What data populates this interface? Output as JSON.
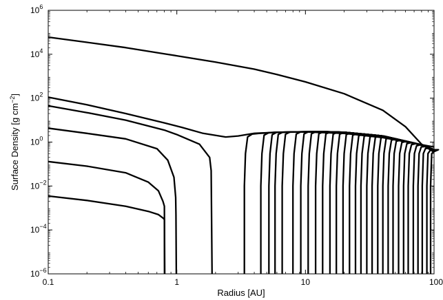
{
  "chart_data": {
    "type": "line",
    "title": "",
    "xlabel": "Radius [AU]",
    "ylabel_parts": {
      "main": "Surface Density [g cm",
      "exp": "−2",
      "close": "]"
    },
    "xscale": "log",
    "yscale": "log",
    "xlim": [
      0.1,
      100
    ],
    "ylim": [
      1e-06,
      1000000.0
    ],
    "grid": false,
    "legend": "none",
    "x_ticks": [
      {
        "value": 0.1,
        "label": "0.1"
      },
      {
        "value": 1,
        "label": "1"
      },
      {
        "value": 10,
        "label": "10"
      },
      {
        "value": 100,
        "label": "100"
      }
    ],
    "y_ticks": [
      {
        "value": 1e-06,
        "base": "10",
        "exp": "−6"
      },
      {
        "value": 0.0001,
        "base": "10",
        "exp": "−4"
      },
      {
        "value": 0.01,
        "base": "10",
        "exp": "−2"
      },
      {
        "value": 1,
        "base": "10",
        "exp": "0"
      },
      {
        "value": 100,
        "base": "10",
        "exp": "2"
      },
      {
        "value": 10000,
        "base": "10",
        "exp": "4"
      },
      {
        "value": 1000000,
        "base": "10",
        "exp": "6"
      }
    ],
    "series": [
      {
        "x": [
          0.1,
          0.2,
          0.4,
          0.8,
          1,
          2,
          4,
          6,
          10,
          20,
          40,
          60,
          80,
          100
        ],
        "y": [
          60000.0,
          35000.0,
          20000.0,
          10500.0,
          8500,
          4400,
          2100,
          1200,
          550,
          160,
          28,
          5,
          0.8,
          0.35
        ]
      },
      {
        "x": [
          0.1,
          0.2,
          0.4,
          0.8,
          1.1,
          1.6,
          2.4,
          3,
          4,
          6,
          10,
          20,
          40,
          100
        ],
        "y": [
          110,
          50,
          20,
          7.5,
          4.6,
          2.5,
          1.7,
          1.9,
          2.5,
          2.8,
          2.9,
          2.5,
          1.6,
          0.6
        ]
      },
      {
        "x": [
          0.1,
          0.2,
          0.4,
          0.8,
          1,
          1.5,
          1.8,
          1.85,
          1.88
        ],
        "y": [
          45,
          22,
          10,
          3.5,
          2.2,
          0.8,
          0.2,
          0.05,
          1e-06
        ]
      },
      {
        "x": [
          0.1,
          0.2,
          0.4,
          0.7,
          0.85,
          0.95,
          0.98,
          0.985,
          0.99
        ],
        "y": [
          4.3,
          2.5,
          1.4,
          0.5,
          0.15,
          0.025,
          0.003,
          0.0005,
          1e-06
        ]
      },
      {
        "x": [
          0.1,
          0.2,
          0.4,
          0.6,
          0.72,
          0.78,
          0.8,
          0.805
        ],
        "y": [
          0.13,
          0.08,
          0.04,
          0.015,
          0.006,
          0.002,
          0.0012,
          1e-06
        ]
      },
      {
        "x": [
          0.1,
          0.2,
          0.4,
          0.6,
          0.72,
          0.78,
          0.8,
          0.802
        ],
        "y": [
          0.0035,
          0.0022,
          0.0012,
          0.0007,
          0.0005,
          0.00035,
          0.0003,
          1e-06
        ]
      }
    ],
    "truncated_profiles": {
      "envelope_x": [
        3.3,
        4,
        6,
        10,
        13,
        20,
        40,
        80,
        100
      ],
      "envelope_y": [
        2.0,
        2.4,
        2.8,
        2.95,
        3.0,
        2.8,
        1.9,
        0.75,
        0.45
      ],
      "edge_radii": [
        3.35,
        4.5,
        5.2,
        5.8,
        6.6,
        8,
        9.2,
        10.5,
        12,
        13.6,
        15.5,
        17.4,
        19.6,
        22,
        24.5,
        27,
        30,
        33,
        36.5,
        40,
        44,
        48,
        53,
        58,
        63,
        69,
        75,
        81,
        88,
        94
      ]
    }
  }
}
